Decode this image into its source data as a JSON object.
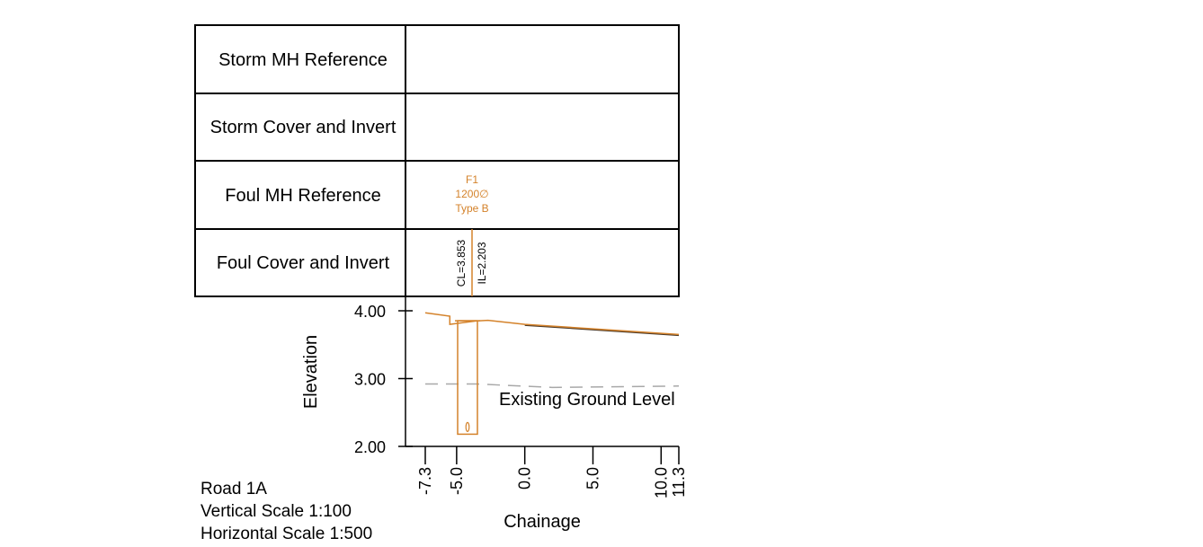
{
  "table": {
    "rows": [
      {
        "label": "Storm MH Reference"
      },
      {
        "label": "Storm Cover and Invert"
      },
      {
        "label": "Foul MH Reference"
      },
      {
        "label": "Foul Cover and Invert"
      }
    ]
  },
  "manhole": {
    "ref": "F1",
    "size": "1200∅",
    "type": "Type B",
    "cover_label": "CL=3.853",
    "invert_label": "IL=2.203",
    "chainage": -4.2,
    "cover_level": 3.853,
    "invert_level": 2.203
  },
  "info": {
    "road": "Road 1A",
    "vertical_scale": "Vertical Scale 1:100",
    "horizontal_scale": "Horizontal Scale 1:500"
  },
  "colors": {
    "foul": "#d4822a",
    "ground": "#a8a8a8",
    "grid": "#000000"
  },
  "chart_data": {
    "type": "line",
    "xlabel": "Chainage",
    "ylabel": "Elevation",
    "xlim": [
      -7.3,
      11.3
    ],
    "ylim": [
      2.0,
      4.0
    ],
    "xticks": [
      -7.3,
      -5.0,
      0.0,
      5.0,
      10.0,
      11.3
    ],
    "xtick_labels": [
      "-7.3",
      "-5.0",
      "0.0",
      "5.0",
      "10.0",
      "11.3"
    ],
    "yticks": [
      4.0,
      3.0,
      2.0
    ],
    "ytick_labels": [
      "4.00",
      "3.00",
      "2.00"
    ],
    "annotations": [
      {
        "text": "Existing Ground Level"
      }
    ],
    "series": [
      {
        "style": "solid",
        "x": [
          -7.3,
          -5.5,
          -5.5,
          -3.6,
          -2.7,
          0.0,
          11.3
        ],
        "y": [
          3.97,
          3.92,
          3.8,
          3.85,
          3.86,
          3.8,
          3.65
        ]
      },
      {
        "style": "dashed",
        "x": [
          -7.3,
          -3.5,
          2.0,
          11.3
        ],
        "y": [
          2.92,
          2.92,
          2.87,
          2.89
        ]
      }
    ]
  }
}
